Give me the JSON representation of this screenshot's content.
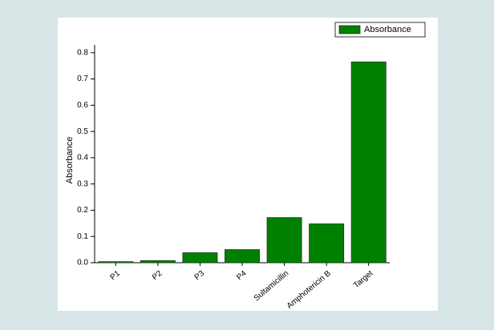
{
  "chart_data": {
    "type": "bar",
    "y_label": "Absorbance",
    "categories": [
      "P1",
      "P2",
      "P3",
      "P4",
      "Sultamicillin",
      "Amphotericin B",
      "Target"
    ],
    "series": [
      {
        "name": "Absorbance",
        "color": "#008000",
        "values": [
          0.004,
          0.008,
          0.038,
          0.05,
          0.172,
          0.148,
          0.765
        ]
      }
    ],
    "ylim": [
      0,
      0.83
    ],
    "yticks": [
      {
        "value": 0,
        "label": "0.0"
      },
      0.1,
      0.2,
      0.3,
      0.4,
      0.5,
      0.6,
      0.7,
      0.8
    ],
    "legend": "upper right"
  }
}
